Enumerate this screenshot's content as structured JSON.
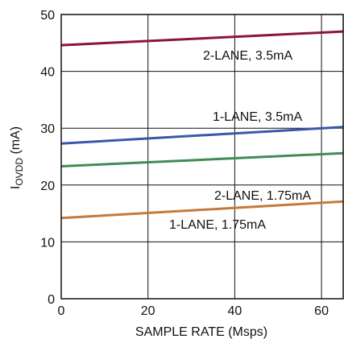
{
  "chart_data": {
    "type": "line",
    "xlabel": "SAMPLE RATE (Msps)",
    "ylabel": {
      "main": "I",
      "sub": "OVDD",
      "unit": " (mA)"
    },
    "xlim": [
      0,
      65
    ],
    "ylim": [
      0,
      50
    ],
    "xticks": [
      0,
      20,
      40,
      60
    ],
    "yticks": [
      0,
      10,
      20,
      30,
      40,
      50
    ],
    "grid": true,
    "series": [
      {
        "name": "2-LANE, 3.5mA",
        "color": "#8b1538",
        "x": [
          0,
          65
        ],
        "y": [
          44.6,
          47.0
        ]
      },
      {
        "name": "1-LANE, 3.5mA",
        "color": "#3b57a8",
        "x": [
          0,
          65
        ],
        "y": [
          27.3,
          30.2
        ]
      },
      {
        "name": "2-LANE, 1.75mA",
        "color": "#3f8c55",
        "x": [
          0,
          65
        ],
        "y": [
          23.3,
          25.6
        ]
      },
      {
        "name": "1-LANE, 1.75mA",
        "color": "#c47a3c",
        "x": [
          0,
          65
        ],
        "y": [
          14.2,
          17.1
        ]
      }
    ]
  }
}
